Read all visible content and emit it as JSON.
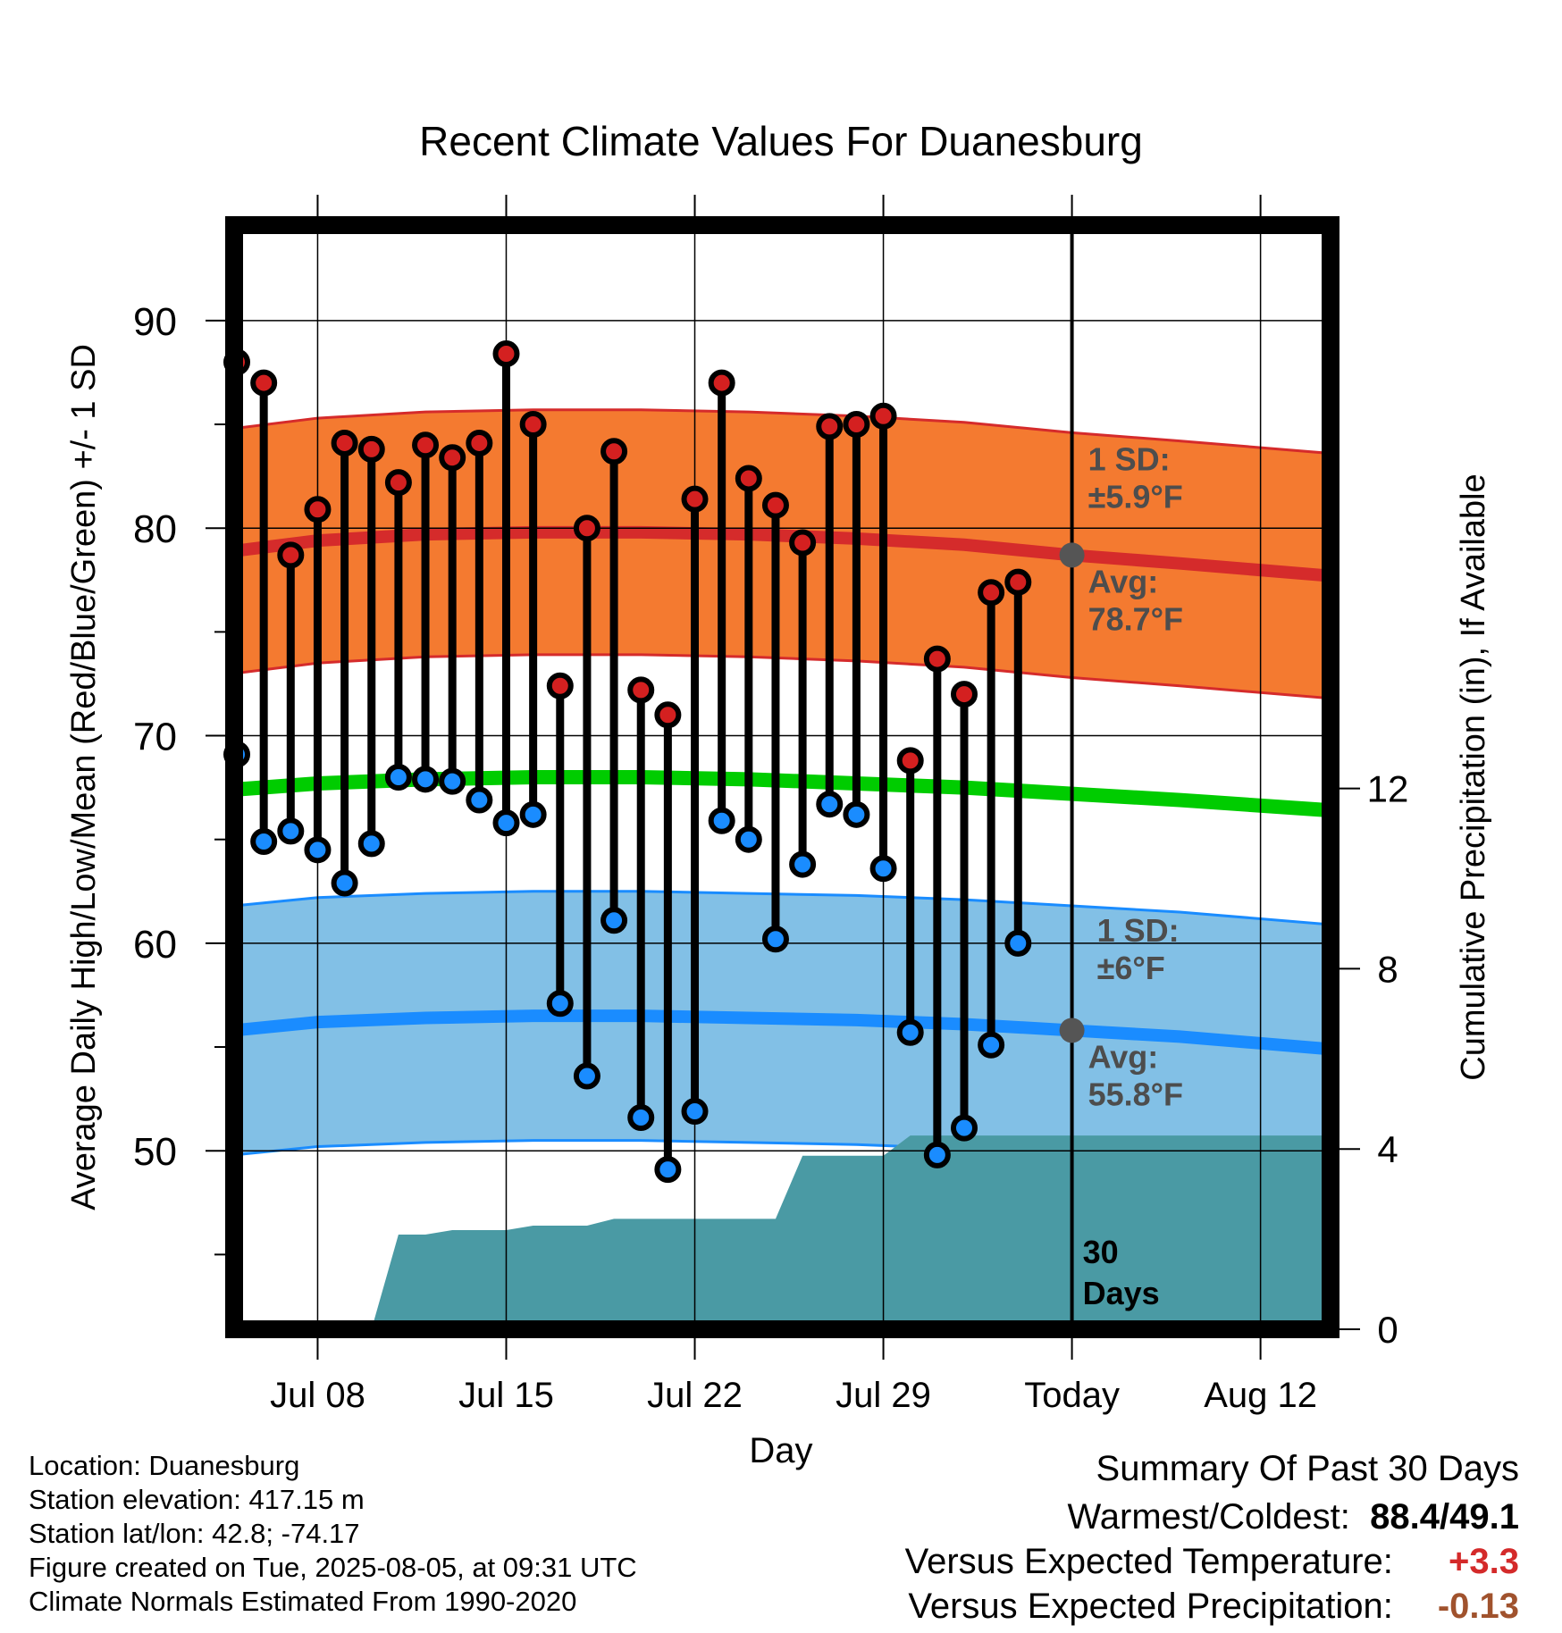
{
  "chart_data": {
    "type": "line",
    "title": "Recent Climate Values For Duanesburg",
    "xlabel": "Day",
    "ylabel": "Average Daily High/Low/Mean (Red/Blue/Green) +/- 1 SD",
    "y2label": "Cumulative Precipitation (in), If Available",
    "x_tick_labels": [
      "Jul 08",
      "Jul 15",
      "Jul 22",
      "Jul 29",
      "Today",
      "Aug 12"
    ],
    "x_tick_days": [
      8,
      15,
      22,
      29,
      36,
      43
    ],
    "xlim": [
      4.9,
      45.6
    ],
    "y_ticks": [
      50,
      60,
      70,
      80,
      90
    ],
    "ylim": [
      41.4,
      94.6
    ],
    "y2_ticks": [
      0,
      4,
      8,
      12
    ],
    "y2lim": [
      0,
      24.5
    ],
    "today_day": 36,
    "today_label_line1": "30",
    "today_label_line2": "Days",
    "grid": true,
    "daily": [
      {
        "day": 5,
        "high": 88.0,
        "low": 69.1
      },
      {
        "day": 6,
        "high": 87.0,
        "low": 64.9
      },
      {
        "day": 7,
        "high": 78.7,
        "low": 65.4
      },
      {
        "day": 8,
        "high": 80.9,
        "low": 64.5
      },
      {
        "day": 9,
        "high": 84.1,
        "low": 62.9
      },
      {
        "day": 10,
        "high": 83.8,
        "low": 64.8
      },
      {
        "day": 11,
        "high": 82.2,
        "low": 68.0
      },
      {
        "day": 12,
        "high": 84.0,
        "low": 67.9
      },
      {
        "day": 13,
        "high": 83.4,
        "low": 67.8
      },
      {
        "day": 14,
        "high": 84.1,
        "low": 66.9
      },
      {
        "day": 15,
        "high": 88.4,
        "low": 65.8
      },
      {
        "day": 16,
        "high": 85.0,
        "low": 66.2
      },
      {
        "day": 17,
        "high": 72.4,
        "low": 57.1
      },
      {
        "day": 18,
        "high": 80.0,
        "low": 53.6
      },
      {
        "day": 19,
        "high": 83.7,
        "low": 61.1
      },
      {
        "day": 20,
        "high": 72.2,
        "low": 51.6
      },
      {
        "day": 21,
        "high": 71.0,
        "low": 49.1
      },
      {
        "day": 22,
        "high": 81.4,
        "low": 51.9
      },
      {
        "day": 23,
        "high": 87.0,
        "low": 65.9
      },
      {
        "day": 24,
        "high": 82.4,
        "low": 65.0
      },
      {
        "day": 25,
        "high": 81.1,
        "low": 60.2
      },
      {
        "day": 26,
        "high": 79.3,
        "low": 63.8
      },
      {
        "day": 27,
        "high": 84.9,
        "low": 66.7
      },
      {
        "day": 28,
        "high": 85.0,
        "low": 66.2
      },
      {
        "day": 29,
        "high": 85.4,
        "low": 63.6
      },
      {
        "day": 30,
        "high": 68.8,
        "low": 55.7
      },
      {
        "day": 31,
        "high": 73.7,
        "low": 49.8
      },
      {
        "day": 32,
        "high": 72.0,
        "low": 51.1
      },
      {
        "day": 33,
        "high": 76.9,
        "low": 55.1
      },
      {
        "day": 34,
        "high": 77.4,
        "low": 60.0
      }
    ],
    "normals_days": [
      4.9,
      8,
      12,
      16,
      20,
      24,
      28,
      32,
      36,
      40,
      45.6
    ],
    "normal_high": [
      78.9,
      79.4,
      79.7,
      79.8,
      79.8,
      79.7,
      79.5,
      79.2,
      78.7,
      78.3,
      77.7
    ],
    "normal_high_sd": 5.9,
    "normal_low": [
      55.8,
      56.2,
      56.4,
      56.5,
      56.5,
      56.4,
      56.3,
      56.1,
      55.8,
      55.5,
      54.9
    ],
    "normal_low_sd": 6.0,
    "normal_mean": [
      67.4,
      67.7,
      67.9,
      68.0,
      68.0,
      67.9,
      67.7,
      67.5,
      67.2,
      66.9,
      66.4
    ],
    "precip_cumulative": [
      [
        10,
        0.0
      ],
      [
        11,
        2.1
      ],
      [
        12,
        2.1
      ],
      [
        13,
        2.2
      ],
      [
        14,
        2.2
      ],
      [
        15,
        2.2
      ],
      [
        16,
        2.3
      ],
      [
        17,
        2.3
      ],
      [
        18,
        2.3
      ],
      [
        19,
        2.45
      ],
      [
        20,
        2.45
      ],
      [
        24,
        2.45
      ],
      [
        25,
        2.45
      ],
      [
        26,
        3.85
      ],
      [
        28,
        3.85
      ],
      [
        29,
        3.85
      ],
      [
        30,
        4.3
      ],
      [
        34,
        4.3
      ],
      [
        36,
        4.3
      ],
      [
        45.6,
        4.3
      ]
    ],
    "annotations": {
      "high_sd_line1": "1 SD:",
      "high_sd_line2": "±5.9°F",
      "high_avg_line1": "Avg:",
      "high_avg_line2": "78.7°F",
      "low_sd_line1": "1 SD:",
      "low_sd_line2": "±6°F",
      "low_avg_line1": "Avg:",
      "low_avg_line2": "55.8°F"
    },
    "colors": {
      "high_band": "#f47a30",
      "high_line": "#d52b2b",
      "low_band": "#82c0e6",
      "low_line": "#1a8cff",
      "mean_line": "#00cc00",
      "precip": "#4a9aa4",
      "high_dot": "#d42020",
      "low_dot": "#1a8cff",
      "annotation": "#4d4d4d"
    }
  },
  "footer": {
    "location": "Location: Duanesburg",
    "elevation": "Station elevation: 417.15 m",
    "latlon": "Station lat/lon: 42.8; -74.17",
    "created": "Figure created on Tue, 2025-08-05, at 09:31 UTC",
    "normals": "Climate Normals Estimated From 1990-2020"
  },
  "summary": {
    "title": "Summary Of Past 30 Days",
    "warmest_label": "Warmest/Coldest:",
    "warmest_value": "88.4/49.1",
    "temp_label": "Versus Expected Temperature:",
    "temp_value": "+3.3",
    "temp_color": "#d42a2a",
    "precip_label": "Versus Expected Precipitation:",
    "precip_value": "-0.13",
    "precip_color": "#a0522d"
  }
}
